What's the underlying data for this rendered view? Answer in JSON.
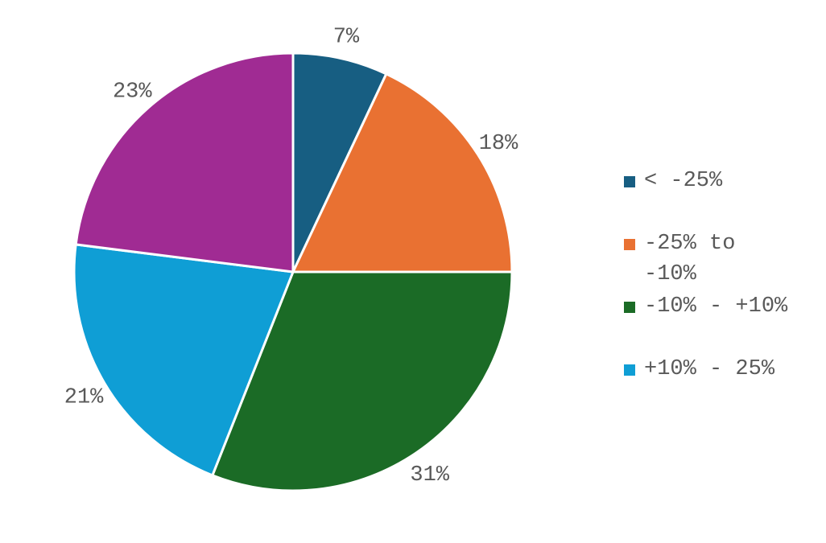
{
  "chart_data": {
    "type": "pie",
    "categories": [
      "< -25%",
      "-25% to -10%",
      "-10% - +10%",
      "+10% - 25%",
      ""
    ],
    "values": [
      7,
      18,
      31,
      21,
      23
    ],
    "data_labels": [
      "7%",
      "18%",
      "31%",
      "21%",
      "23%"
    ],
    "colors": [
      "#175e82",
      "#e97132",
      "#1b6b26",
      "#0f9ed5",
      "#a02b93"
    ],
    "legend_position": "right",
    "start_angle": "12 o'clock, clockwise"
  },
  "legend": {
    "items": [
      {
        "label": "< -25%",
        "color": "#175e82"
      },
      {
        "label": "-25% to -10%",
        "color": "#e97132"
      },
      {
        "label": "-10% - +10%",
        "color": "#1b6b26"
      },
      {
        "label": "+10% - 25%",
        "color": "#0f9ed5"
      }
    ]
  }
}
